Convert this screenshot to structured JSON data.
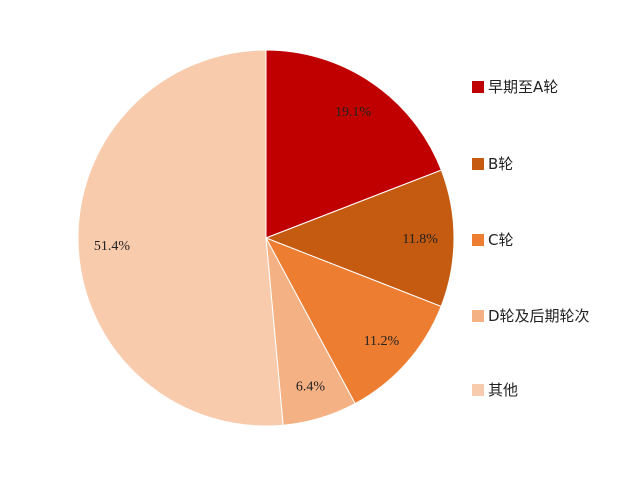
{
  "chart_data": {
    "type": "pie",
    "title": "",
    "start_angle": "top",
    "direction": "clockwise",
    "legend_position": "right",
    "slices": [
      {
        "name": "早期至A轮",
        "value": 19.1,
        "label": "19.1%",
        "color": "#C00000"
      },
      {
        "name": "B轮",
        "value": 11.8,
        "label": "11.8%",
        "color": "#C55A11"
      },
      {
        "name": "C轮",
        "value": 11.2,
        "label": "11.2%",
        "color": "#ED7D31"
      },
      {
        "name": "D轮及后期轮次",
        "value": 6.4,
        "label": "6.4%",
        "color": "#F4B183"
      },
      {
        "name": "其他",
        "value": 51.4,
        "label": "51.4%",
        "color": "#F8CBAD"
      }
    ]
  }
}
